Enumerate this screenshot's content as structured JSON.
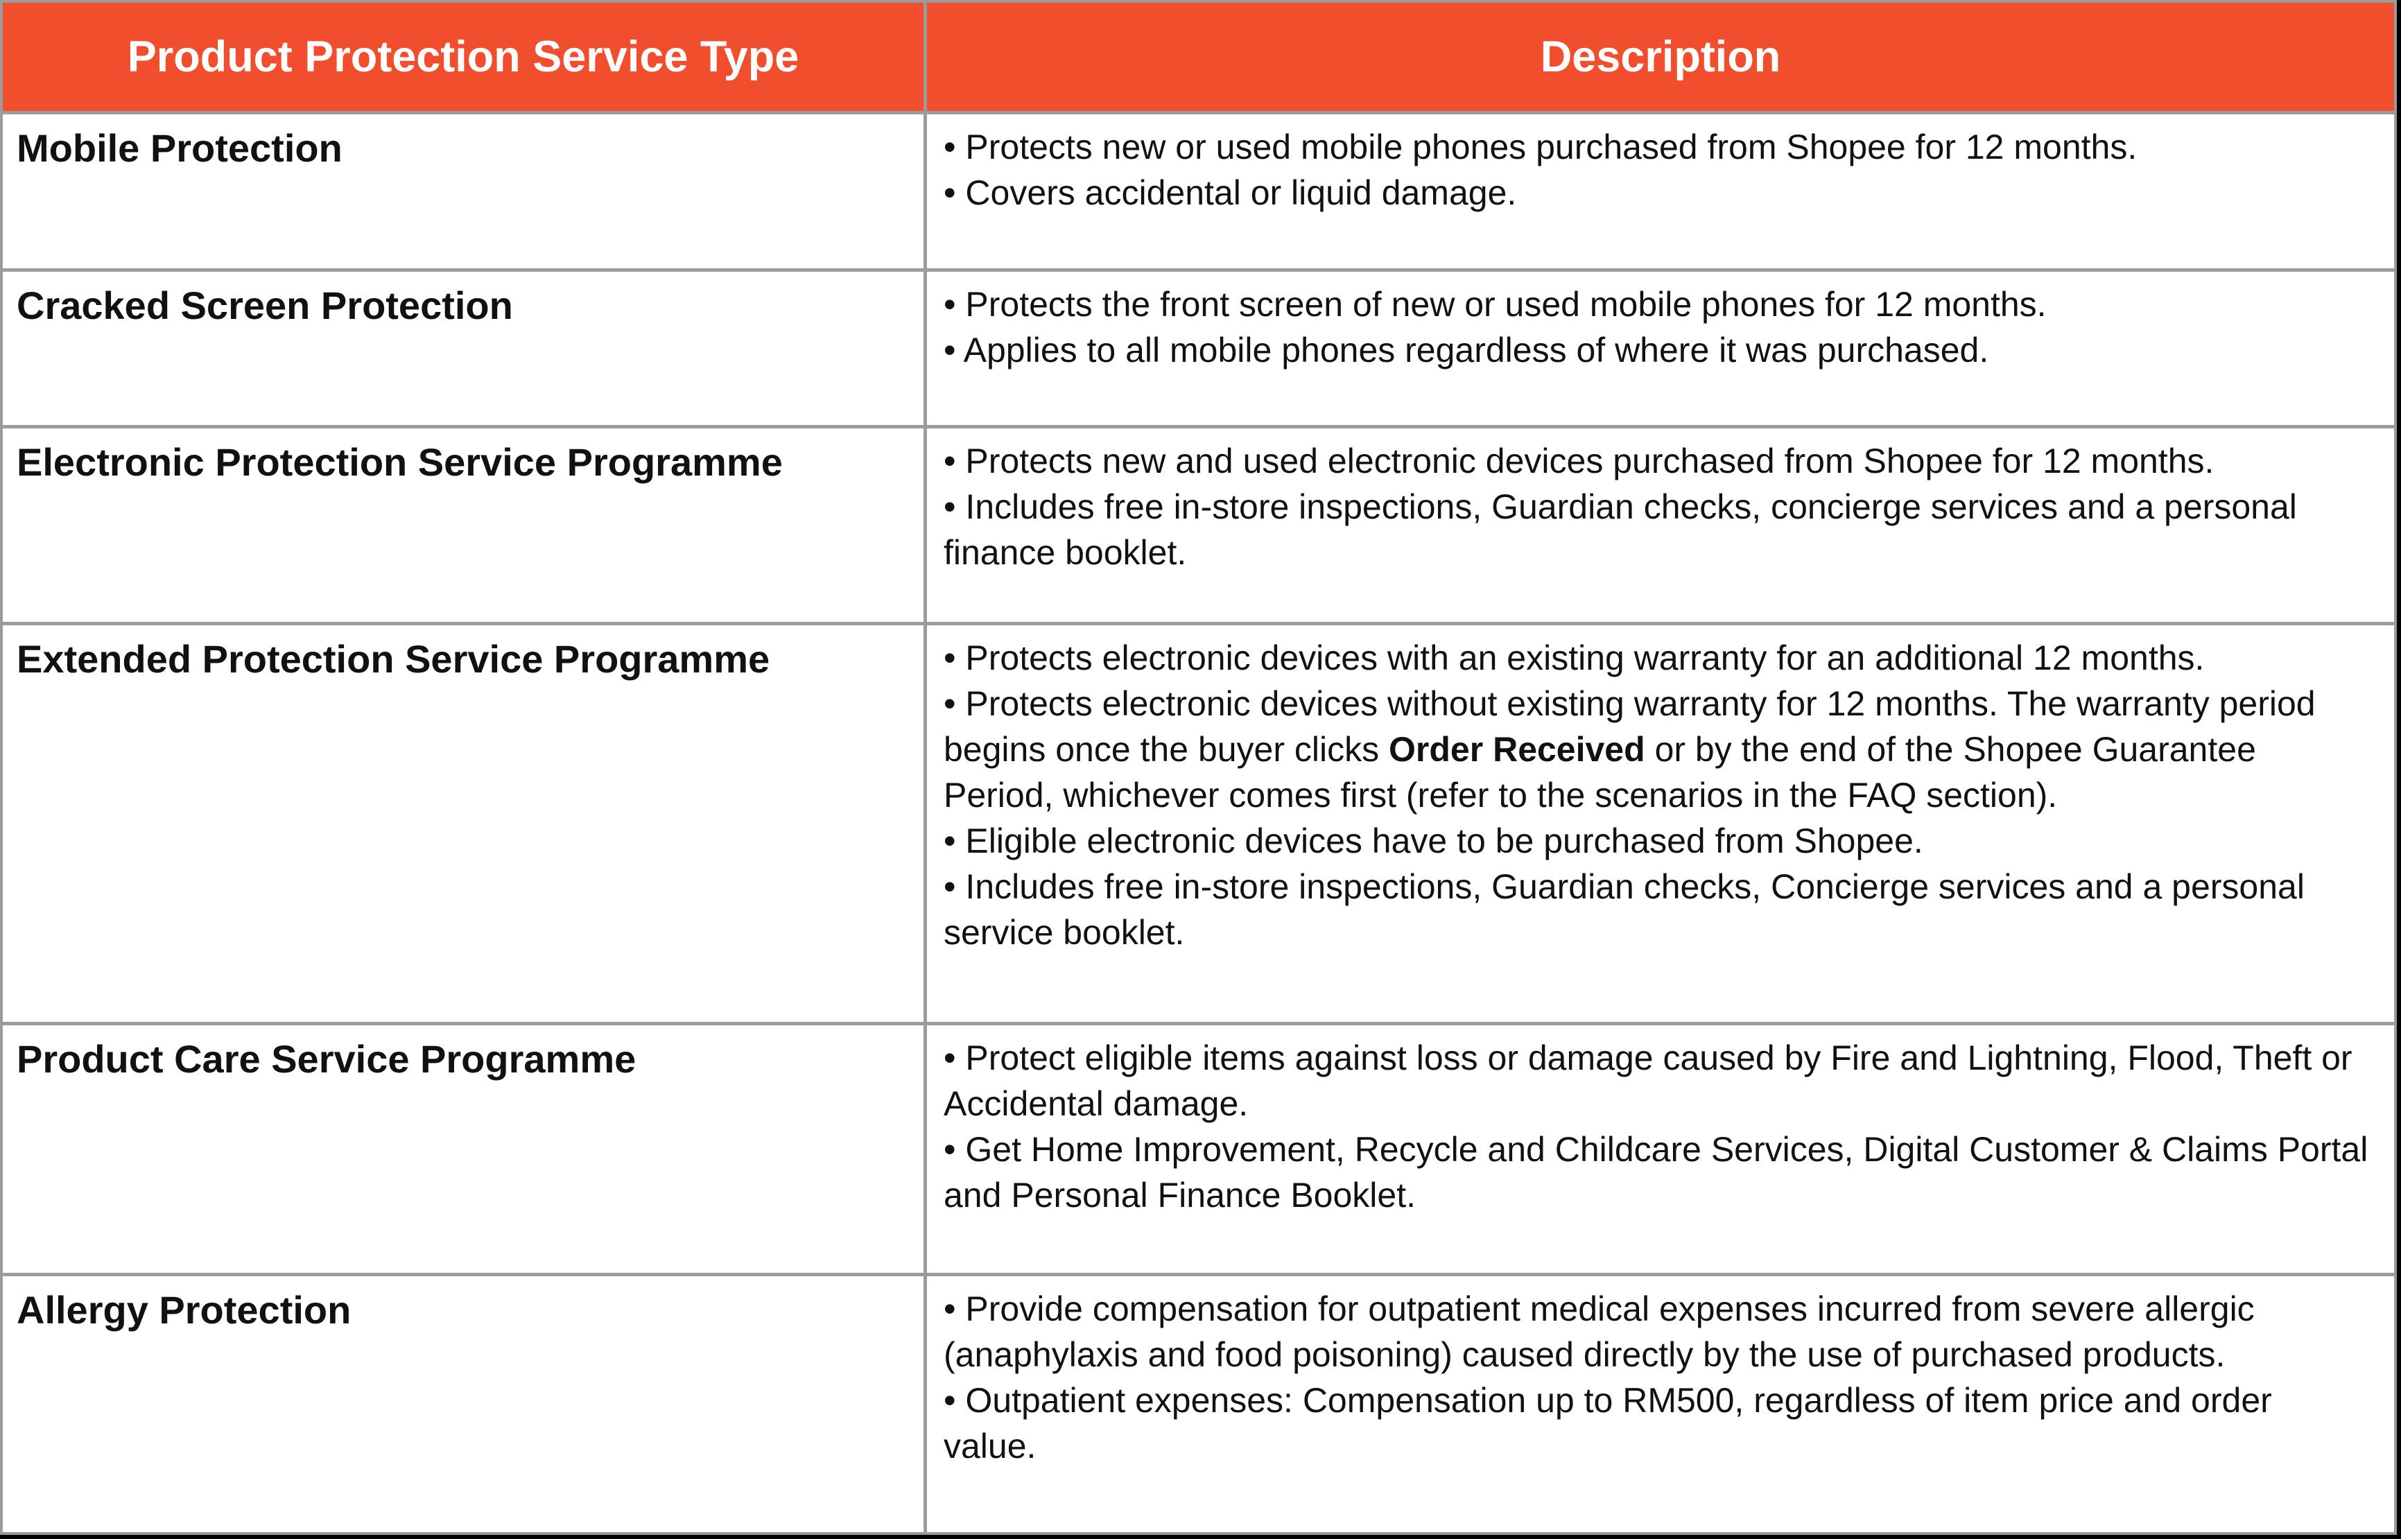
{
  "colors": {
    "header_background": "#f04e2d",
    "header_text": "#ffffff",
    "grid_line": "#9b9b9b",
    "body_text": "#111111",
    "cell_background": "#ffffff"
  },
  "table": {
    "headers": {
      "service_type": "Product Protection Service Type",
      "description": "Description"
    },
    "rows": [
      {
        "type": "Mobile Protection",
        "bullets": [
          {
            "text": "• Protects new or used mobile phones purchased from Shopee for 12 months."
          },
          {
            "text": "• Covers accidental or liquid damage."
          }
        ]
      },
      {
        "type": "Cracked Screen Protection",
        "bullets": [
          {
            "text": "• Protects the front screen of new or used mobile phones for 12 months."
          },
          {
            "text": "• Applies to all mobile phones regardless of where it was purchased."
          }
        ]
      },
      {
        "type": "Electronic Protection Service Programme",
        "bullets": [
          {
            "text": "• Protects new and used electronic devices purchased from Shopee for 12 months."
          },
          {
            "text": "• Includes free in-store inspections, Guardian checks, concierge services and a personal finance booklet."
          }
        ]
      },
      {
        "type": "Extended Protection Service Programme",
        "bullets": [
          {
            "text": "• Protects electronic devices with an existing warranty for an additional 12 months."
          },
          {
            "pre": "• Protects electronic devices without existing warranty for 12 months. The warranty period begins once the buyer clicks ",
            "bold": "Order Received",
            "post": " or by the end of the Shopee Guarantee Period, whichever comes first (refer to the scenarios in the FAQ section)."
          },
          {
            "text": "• Eligible electronic devices have to be purchased from Shopee."
          },
          {
            "text": "• Includes free in-store inspections, Guardian checks, Concierge services and a personal service booklet."
          }
        ]
      },
      {
        "type": "Product Care Service Programme",
        "bullets": [
          {
            "text": "• Protect eligible items against loss or damage caused by Fire and Lightning, Flood, Theft or Accidental damage."
          },
          {
            "text": "• Get Home Improvement, Recycle and Childcare Services, Digital Customer & Claims Portal and Personal Finance Booklet."
          }
        ]
      },
      {
        "type": "Allergy Protection",
        "bullets": [
          {
            "text": "• Provide compensation for outpatient medical expenses incurred from severe allergic (anaphylaxis and food poisoning) caused directly by the use of purchased products."
          },
          {
            "text": "• Outpatient expenses: Compensation up to RM500, regardless of item price and order value."
          }
        ]
      }
    ]
  }
}
